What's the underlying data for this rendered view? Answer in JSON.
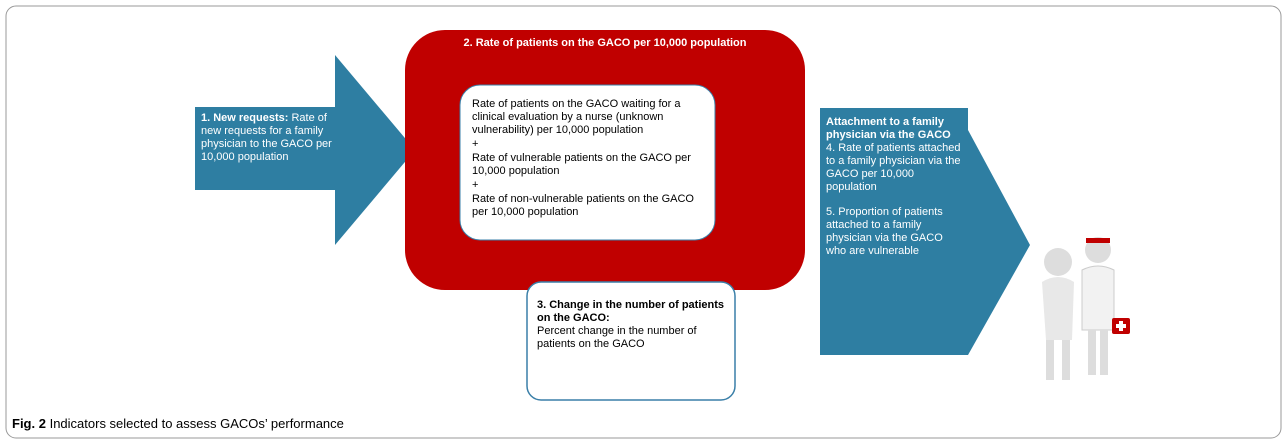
{
  "new_requests": {
    "label": "1. New requests:",
    "text": "Rate of new requests for a family physician to the GACO per 10,000 population"
  },
  "rate_on_gaco": {
    "title": "2. Rate of patients on the GACO per 10,000 population",
    "items": [
      "Rate of patients on the GACO waiting for a clinical evaluation by a nurse (unknown vulnerability) per 10,000 population",
      "+",
      "Rate of vulnerable patients on the GACO per 10,000 population",
      "+",
      "Rate of non-vulnerable patients on the GACO per 10,000 population"
    ]
  },
  "change": {
    "label": "3. Change in the number of patients on the GACO:",
    "text": "Percent change in the number of patients on the GACO"
  },
  "attachment": {
    "title": "Attachment to a family physician via the GACO",
    "items": [
      "4. Rate of patients attached to a family physician via the GACO per 10,000 population",
      "5. Proportion of patients attached to a family physician via the GACO who are vulnerable"
    ]
  },
  "caption": {
    "label": "Fig. 2",
    "text": "Indicators selected to assess GACOs’ performance"
  }
}
